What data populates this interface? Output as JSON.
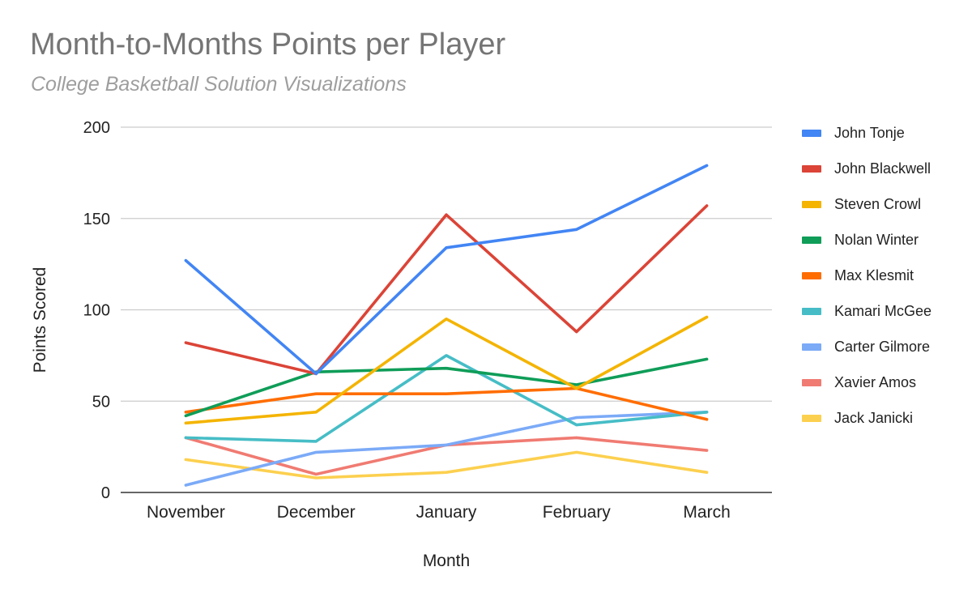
{
  "chart_data": {
    "type": "line",
    "title": "Month-to-Months Points per Player",
    "subtitle": "College Basketball Solution Visualizations",
    "xlabel": "Month",
    "ylabel": "Points Scored",
    "categories": [
      "November",
      "December",
      "January",
      "February",
      "March"
    ],
    "ylim": [
      0,
      200
    ],
    "yticks": [
      0,
      50,
      100,
      150,
      200
    ],
    "grid": true,
    "legend_position": "right",
    "series": [
      {
        "name": "John Tonje",
        "color": "#4285f4",
        "values": [
          127,
          65,
          134,
          144,
          179
        ]
      },
      {
        "name": "John Blackwell",
        "color": "#db4437",
        "values": [
          82,
          65,
          152,
          88,
          157
        ]
      },
      {
        "name": "Steven Crowl",
        "color": "#f4b400",
        "values": [
          38,
          44,
          95,
          57,
          96
        ]
      },
      {
        "name": "Nolan Winter",
        "color": "#0f9d58",
        "values": [
          42,
          66,
          68,
          59,
          73
        ]
      },
      {
        "name": "Max Klesmit",
        "color": "#ff6d01",
        "values": [
          44,
          54,
          54,
          57,
          40
        ]
      },
      {
        "name": "Kamari McGee",
        "color": "#46bdc6",
        "values": [
          30,
          28,
          75,
          37,
          44
        ]
      },
      {
        "name": "Carter Gilmore",
        "color": "#7baaf7",
        "values": [
          4,
          22,
          26,
          41,
          44
        ]
      },
      {
        "name": "Xavier Amos",
        "color": "#f07b72",
        "values": [
          30,
          10,
          26,
          30,
          23
        ]
      },
      {
        "name": "Jack Janicki",
        "color": "#fcd04f",
        "values": [
          18,
          8,
          11,
          22,
          11
        ]
      }
    ]
  }
}
